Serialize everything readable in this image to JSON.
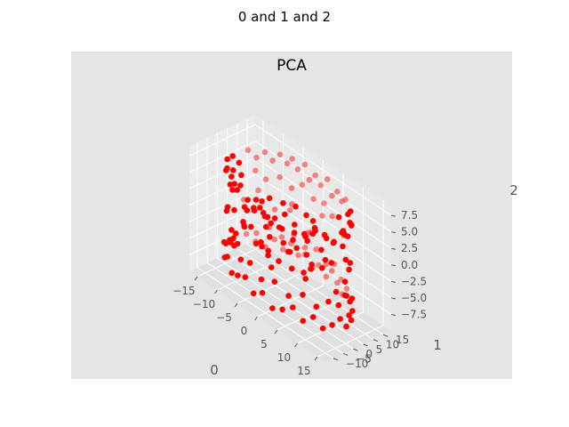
{
  "figure": {
    "suptitle": "0 and 1 and 2"
  },
  "chart_data": {
    "type": "scatter3d",
    "title": "PCA",
    "xlabel": "0",
    "ylabel": "1",
    "zlabel": "2",
    "xlim": [
      -17,
      17
    ],
    "ylim": [
      -14,
      19
    ],
    "zlim": [
      -10,
      9
    ],
    "xticks": [
      -15,
      -10,
      -5,
      0,
      5,
      10,
      15
    ],
    "xtick_labels": [
      "−15",
      "−10",
      "−5",
      "0",
      "5",
      "10",
      "15"
    ],
    "yticks": [
      -10,
      -5,
      0,
      5,
      10,
      15
    ],
    "ytick_labels": [
      "−10",
      "−5",
      "0",
      "5",
      "10",
      "15"
    ],
    "zticks": [
      -7.5,
      -5.0,
      -2.5,
      0.0,
      2.5,
      5.0,
      7.5
    ],
    "ztick_labels": [
      "−7.5",
      "−5.0",
      "−2.5",
      "0.0",
      "2.5",
      "5.0",
      "7.5"
    ],
    "grid": true,
    "legend": "none",
    "style": "ggplot",
    "marker_color": "#ff0000",
    "series": [
      {
        "points": [
          [
            -14.2,
            2.1,
            6.3
          ],
          [
            -13.8,
            4.5,
            5.1
          ],
          [
            -12.9,
            7.2,
            7.0
          ],
          [
            -12.1,
            9.8,
            5.8
          ],
          [
            -11.3,
            12.4,
            6.6
          ],
          [
            -10.2,
            14.1,
            5.5
          ],
          [
            -8.9,
            15.2,
            6.8
          ],
          [
            -7.5,
            16.0,
            5.9
          ],
          [
            -6.1,
            15.7,
            7.2
          ],
          [
            -4.8,
            15.9,
            6.1
          ],
          [
            -3.2,
            16.3,
            7.4
          ],
          [
            -1.9,
            15.8,
            5.7
          ],
          [
            -0.5,
            16.1,
            6.9
          ],
          [
            1.2,
            15.4,
            6.2
          ],
          [
            2.6,
            15.9,
            7.6
          ],
          [
            4.1,
            15.2,
            5.8
          ],
          [
            5.6,
            14.8,
            7.1
          ],
          [
            7.2,
            13.9,
            6.4
          ],
          [
            8.8,
            12.5,
            7.5
          ],
          [
            10.1,
            11.2,
            6.0
          ],
          [
            11.6,
            9.4,
            7.3
          ],
          [
            12.8,
            7.5,
            5.9
          ],
          [
            13.9,
            5.3,
            6.8
          ],
          [
            14.6,
            3.1,
            7.7
          ],
          [
            15.2,
            0.8,
            6.2
          ],
          [
            14.9,
            -1.6,
            7.0
          ],
          [
            14.1,
            -3.9,
            5.6
          ],
          [
            12.9,
            -6.2,
            6.5
          ],
          [
            11.4,
            -8.1,
            7.2
          ],
          [
            9.6,
            -9.7,
            5.8
          ],
          [
            7.7,
            -10.8,
            6.6
          ],
          [
            5.6,
            -11.5,
            7.4
          ],
          [
            3.4,
            -12.1,
            6.0
          ],
          [
            1.1,
            -12.4,
            5.4
          ],
          [
            -1.3,
            -12.0,
            6.9
          ],
          [
            -3.6,
            -11.6,
            5.9
          ],
          [
            -5.8,
            -10.9,
            7.1
          ],
          [
            -7.9,
            -9.6,
            6.3
          ],
          [
            -9.8,
            -8.0,
            5.2
          ],
          [
            -11.5,
            -6.1,
            6.7
          ],
          [
            -12.9,
            -3.8,
            5.5
          ],
          [
            -13.9,
            -1.2,
            6.4
          ],
          [
            -13.5,
            0.9,
            4.6
          ],
          [
            -12.6,
            3.2,
            3.9
          ],
          [
            -10.8,
            6.7,
            4.8
          ],
          [
            -9.4,
            9.1,
            3.7
          ],
          [
            -7.3,
            11.9,
            4.5
          ],
          [
            -5.1,
            13.4,
            3.5
          ],
          [
            -2.7,
            13.9,
            4.9
          ],
          [
            0.0,
            14.2,
            3.8
          ],
          [
            2.9,
            13.6,
            4.4
          ],
          [
            5.4,
            12.7,
            3.6
          ],
          [
            7.9,
            11.0,
            4.7
          ],
          [
            10.2,
            8.6,
            3.9
          ],
          [
            12.1,
            5.4,
            4.6
          ],
          [
            13.4,
            1.9,
            3.8
          ],
          [
            13.1,
            -2.2,
            4.8
          ],
          [
            11.8,
            -5.6,
            3.7
          ],
          [
            9.7,
            -8.4,
            4.6
          ],
          [
            7.0,
            -10.2,
            3.9
          ],
          [
            4.1,
            -11.2,
            4.8
          ],
          [
            0.9,
            -11.5,
            3.6
          ],
          [
            -2.3,
            -10.9,
            4.7
          ],
          [
            -5.4,
            -9.6,
            3.8
          ],
          [
            -8.3,
            -7.5,
            4.9
          ],
          [
            -10.7,
            -5.0,
            3.6
          ],
          [
            -12.4,
            -2.1,
            4.5
          ],
          [
            -14.5,
            1.2,
            -6.4
          ],
          [
            -14.0,
            4.1,
            -7.2
          ],
          [
            -13.2,
            7.0,
            -5.8
          ],
          [
            -12.2,
            9.6,
            -6.9
          ],
          [
            -11.0,
            12.1,
            -7.6
          ],
          [
            -9.7,
            14.0,
            -6.2
          ],
          [
            -8.2,
            15.3,
            -7.3
          ],
          [
            -6.6,
            16.1,
            -5.9
          ],
          [
            -4.9,
            16.4,
            -7.0
          ],
          [
            -3.1,
            16.0,
            -6.1
          ],
          [
            -1.4,
            16.5,
            -7.5
          ],
          [
            0.4,
            15.9,
            -6.3
          ],
          [
            2.1,
            16.2,
            -7.4
          ],
          [
            3.9,
            15.5,
            -5.7
          ],
          [
            5.5,
            15.0,
            -6.8
          ],
          [
            7.2,
            14.1,
            -7.7
          ],
          [
            8.9,
            12.9,
            -6.0
          ],
          [
            10.5,
            11.4,
            -7.1
          ],
          [
            11.9,
            9.6,
            -5.8
          ],
          [
            13.1,
            7.4,
            -6.9
          ],
          [
            14.0,
            5.0,
            -7.6
          ],
          [
            14.7,
            2.5,
            -6.2
          ],
          [
            15.3,
            -0.1,
            -7.3
          ],
          [
            15.0,
            -2.6,
            -5.9
          ],
          [
            14.2,
            -5.0,
            -6.8
          ],
          [
            13.0,
            -7.2,
            -7.5
          ],
          [
            11.5,
            -9.1,
            -6.1
          ],
          [
            9.7,
            -10.6,
            -7.2
          ],
          [
            7.7,
            -11.7,
            -5.8
          ],
          [
            5.5,
            -12.5,
            -6.9
          ],
          [
            3.2,
            -12.9,
            -7.6
          ],
          [
            0.8,
            -13.1,
            -6.2
          ],
          [
            -1.6,
            -12.7,
            -7.3
          ],
          [
            -4.0,
            -12.1,
            -5.9
          ],
          [
            -6.3,
            -11.2,
            -6.7
          ],
          [
            -8.5,
            -9.8,
            -7.4
          ],
          [
            -10.5,
            -8.0,
            -6.0
          ],
          [
            -12.2,
            -5.9,
            -7.1
          ],
          [
            -13.6,
            -3.4,
            -5.7
          ],
          [
            -14.4,
            -0.9,
            -6.6
          ],
          [
            -13.1,
            1.5,
            -4.9
          ],
          [
            -12.5,
            4.6,
            -4.1
          ],
          [
            -11.2,
            8.0,
            -5.0
          ],
          [
            -9.5,
            10.9,
            -3.9
          ],
          [
            -7.4,
            13.1,
            -4.8
          ],
          [
            -5.0,
            14.4,
            -3.7
          ],
          [
            -2.4,
            14.7,
            -4.6
          ],
          [
            0.3,
            14.9,
            -3.8
          ],
          [
            3.0,
            14.3,
            -4.9
          ],
          [
            5.7,
            13.2,
            -3.6
          ],
          [
            8.2,
            11.5,
            -4.7
          ],
          [
            10.4,
            9.1,
            -3.8
          ],
          [
            12.2,
            6.2,
            -4.8
          ],
          [
            13.5,
            2.8,
            -3.7
          ],
          [
            13.7,
            -0.8,
            -4.6
          ],
          [
            12.9,
            -4.2,
            -3.9
          ],
          [
            11.3,
            -7.1,
            -4.9
          ],
          [
            9.0,
            -9.3,
            -3.7
          ],
          [
            6.2,
            -10.8,
            -4.8
          ],
          [
            3.1,
            -11.6,
            -3.8
          ],
          [
            -0.1,
            -11.8,
            -4.7
          ],
          [
            -3.3,
            -11.1,
            -3.6
          ],
          [
            -6.3,
            -9.7,
            -4.5
          ],
          [
            -9.0,
            -7.6,
            -3.8
          ],
          [
            -11.2,
            -4.9,
            -4.6
          ],
          [
            -12.6,
            -1.7,
            -3.7
          ],
          [
            -13.9,
            2.3,
            -1.8
          ],
          [
            -13.2,
            5.7,
            -0.4
          ],
          [
            -11.4,
            9.3,
            1.2
          ],
          [
            -8.8,
            12.4,
            -1.1
          ],
          [
            -5.6,
            14.6,
            0.7
          ],
          [
            -2.0,
            15.3,
            -2.3
          ],
          [
            1.7,
            15.1,
            1.8
          ],
          [
            5.3,
            13.9,
            -0.6
          ],
          [
            8.7,
            11.9,
            2.1
          ],
          [
            11.5,
            8.9,
            -1.5
          ],
          [
            13.6,
            5.2,
            0.9
          ],
          [
            14.6,
            1.0,
            2.4
          ],
          [
            14.3,
            -3.2,
            -2.0
          ],
          [
            12.7,
            -7.0,
            1.5
          ],
          [
            10.0,
            -9.9,
            -0.8
          ],
          [
            6.6,
            -11.8,
            2.2
          ],
          [
            2.8,
            -12.6,
            -1.6
          ],
          [
            -1.1,
            -12.4,
            0.4
          ],
          [
            -4.9,
            -11.3,
            2.0
          ],
          [
            -8.4,
            -9.2,
            -2.2
          ],
          [
            -11.2,
            -6.4,
            1.0
          ],
          [
            -13.2,
            -2.9,
            -0.9
          ],
          [
            -6.2,
            4.5,
            2.8
          ],
          [
            -4.0,
            6.9,
            2.6
          ],
          [
            -1.5,
            8.2,
            2.9
          ],
          [
            1.2,
            8.1,
            2.7
          ],
          [
            3.6,
            6.7,
            3.0
          ],
          [
            5.3,
            4.4,
            2.5
          ],
          [
            6.1,
            1.6,
            2.8
          ],
          [
            5.7,
            -1.3,
            2.6
          ],
          [
            4.1,
            -3.7,
            2.9
          ],
          [
            1.7,
            -5.0,
            2.7
          ],
          [
            -1.0,
            -5.2,
            2.5
          ],
          [
            -3.5,
            -4.0,
            2.9
          ],
          [
            -5.4,
            -1.9,
            2.6
          ],
          [
            -6.3,
            0.9,
            2.8
          ],
          [
            -5.5,
            3.2,
            -2.6
          ],
          [
            -3.2,
            5.5,
            -2.9
          ],
          [
            -0.4,
            6.5,
            -2.7
          ],
          [
            2.4,
            5.9,
            -2.5
          ],
          [
            4.6,
            4.0,
            -2.8
          ],
          [
            5.8,
            1.3,
            -2.6
          ],
          [
            5.4,
            -1.6,
            -2.9
          ],
          [
            3.6,
            -3.9,
            -2.7
          ],
          [
            0.9,
            -5.1,
            -2.5
          ],
          [
            -1.9,
            -4.8,
            -2.8
          ],
          [
            -4.2,
            -3.3,
            -2.6
          ],
          [
            -5.7,
            -0.8,
            -2.9
          ],
          [
            -8.9,
            2.0,
            0.6
          ],
          [
            -7.6,
            6.4,
            -0.9
          ],
          [
            -3.9,
            10.2,
            1.1
          ],
          [
            0.8,
            11.3,
            -0.5
          ],
          [
            5.6,
            9.4,
            0.8
          ],
          [
            8.9,
            5.3,
            -1.0
          ],
          [
            9.8,
            0.4,
            0.5
          ],
          [
            8.5,
            -4.3,
            -0.7
          ],
          [
            5.1,
            -7.9,
            1.0
          ],
          [
            0.3,
            -9.1,
            -0.6
          ],
          [
            -4.6,
            -8.0,
            0.9
          ],
          [
            -8.0,
            -4.6,
            -0.8
          ],
          [
            -9.3,
            -0.5,
            0.4
          ]
        ]
      }
    ]
  }
}
